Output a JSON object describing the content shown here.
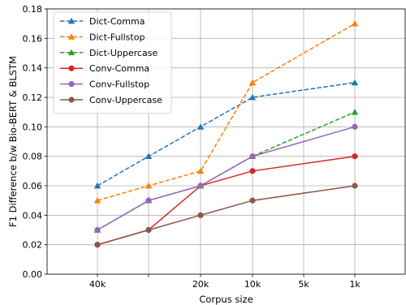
{
  "chart_data": {
    "type": "line",
    "xlabel": "Corpus size",
    "ylabel": "F1 Difference b/w Bio-BERT & BLSTM",
    "categories": [
      "40k",
      "",
      "20k",
      "10k",
      "5k",
      "1k"
    ],
    "ylim": [
      0,
      0.18
    ],
    "yticks": [
      "0.00",
      "0.02",
      "0.04",
      "0.06",
      "0.08",
      "0.10",
      "0.12",
      "0.14",
      "0.16",
      "0.18"
    ],
    "grid": true,
    "legend_position": "top-left",
    "series": [
      {
        "name": "Dict-Comma",
        "color": "#1f77b4",
        "dashed": true,
        "marker": "triangle",
        "points": [
          [
            0,
            0.06
          ],
          [
            1,
            0.08
          ],
          [
            2,
            0.1
          ],
          [
            3,
            0.12
          ],
          [
            5,
            0.13
          ]
        ]
      },
      {
        "name": "Dict-Fullstop",
        "color": "#ff7f0e",
        "dashed": true,
        "marker": "triangle",
        "points": [
          [
            0,
            0.05
          ],
          [
            1,
            0.06
          ],
          [
            2,
            0.07
          ],
          [
            3,
            0.13
          ],
          [
            5,
            0.17
          ]
        ]
      },
      {
        "name": "Dict-Uppercase",
        "color": "#2ca02c",
        "dashed": true,
        "marker": "triangle",
        "points": [
          [
            0,
            0.03
          ],
          [
            1,
            0.05
          ],
          [
            2,
            0.06
          ],
          [
            3,
            0.08
          ],
          [
            5,
            0.11
          ]
        ]
      },
      {
        "name": "Conv-Comma",
        "color": "#d62728",
        "dashed": false,
        "marker": "circle",
        "points": [
          [
            0,
            0.02
          ],
          [
            1,
            0.03
          ],
          [
            2,
            0.06
          ],
          [
            3,
            0.07
          ],
          [
            5,
            0.08
          ]
        ]
      },
      {
        "name": "Conv-Fullstop",
        "color": "#9467bd",
        "dashed": false,
        "marker": "circle",
        "points": [
          [
            0,
            0.03
          ],
          [
            1,
            0.05
          ],
          [
            2,
            0.06
          ],
          [
            3,
            0.08
          ],
          [
            5,
            0.1
          ]
        ]
      },
      {
        "name": "Conv-Uppercase",
        "color": "#8c564b",
        "dashed": false,
        "marker": "circle",
        "points": [
          [
            0,
            0.02
          ],
          [
            1,
            0.03
          ],
          [
            2,
            0.04
          ],
          [
            3,
            0.05
          ],
          [
            5,
            0.06
          ]
        ]
      }
    ]
  }
}
